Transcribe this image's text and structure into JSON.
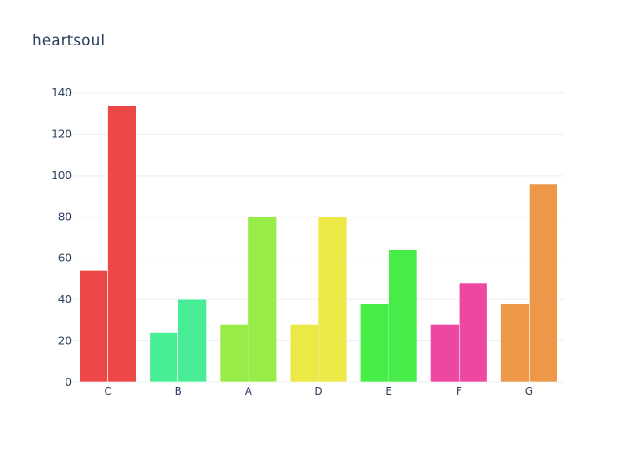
{
  "chart_data": {
    "type": "bar",
    "title": "heartsoul",
    "categories": [
      "C",
      "B",
      "A",
      "D",
      "E",
      "F",
      "G"
    ],
    "pairs": [
      [
        54,
        134
      ],
      [
        24,
        40
      ],
      [
        28,
        80
      ],
      [
        28,
        80
      ],
      [
        38,
        64
      ],
      [
        28,
        48
      ],
      [
        38,
        96
      ]
    ],
    "colors": [
      "#ec4848",
      "#48ec94",
      "#98ec48",
      "#ece848",
      "#48ec48",
      "#ec48a0",
      "#ec9848"
    ],
    "ylim": [
      0,
      140
    ],
    "yticks": [
      0,
      20,
      40,
      60,
      80,
      100,
      120,
      140
    ],
    "grid": true,
    "legend": "none"
  }
}
